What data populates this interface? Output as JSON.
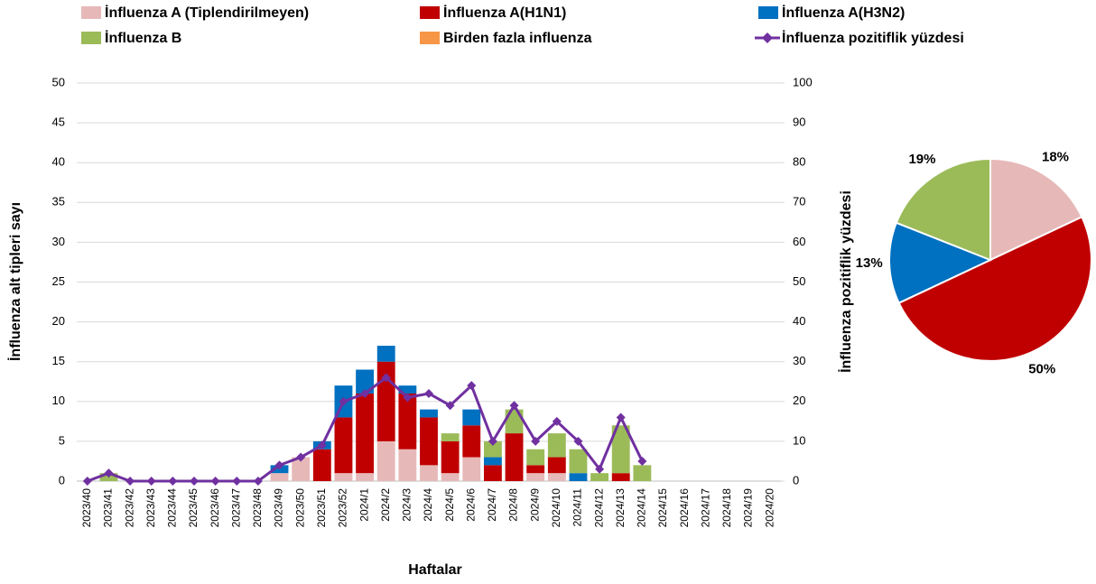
{
  "chart_data": [
    {
      "type": "bar",
      "categories": [
        "2023/40",
        "2023/41",
        "2023/42",
        "2023/43",
        "2023/44",
        "2023/45",
        "2023/46",
        "2023/47",
        "2023/48",
        "2023/49",
        "2023/50",
        "2023/51",
        "2023/52",
        "2024/1",
        "2024/2",
        "2024/3",
        "2024/4",
        "2024/5",
        "2024/6",
        "2024/7",
        "2024/8",
        "2024/9",
        "2024/10",
        "2024/11",
        "2024/12",
        "2024/13",
        "2024/14",
        "2024/15",
        "2024/16",
        "2024/17",
        "2024/18",
        "2024/19",
        "2024/20"
      ],
      "series": [
        {
          "name": "İnfluenza A (Tiplendirilmeyen)",
          "color": "#e6b9b8",
          "values": [
            0,
            0,
            0,
            0,
            0,
            0,
            0,
            0,
            0,
            1,
            3,
            0,
            1,
            1,
            5,
            4,
            2,
            1,
            3,
            0,
            0,
            1,
            1,
            0,
            0,
            0,
            0,
            0,
            0,
            0,
            0,
            0,
            0
          ]
        },
        {
          "name": "İnfluenza A(H1N1)",
          "color": "#c00000",
          "values": [
            0,
            0,
            0,
            0,
            0,
            0,
            0,
            0,
            0,
            0,
            0,
            4,
            7,
            10,
            10,
            7,
            6,
            4,
            4,
            2,
            6,
            1,
            2,
            0,
            0,
            1,
            0,
            0,
            0,
            0,
            0,
            0,
            0
          ]
        },
        {
          "name": "İnfluenza A(H3N2)",
          "color": "#0070c0",
          "values": [
            0,
            0,
            0,
            0,
            0,
            0,
            0,
            0,
            0,
            1,
            0,
            1,
            4,
            3,
            2,
            1,
            1,
            0,
            2,
            1,
            0,
            0,
            0,
            1,
            0,
            0,
            0,
            0,
            0,
            0,
            0,
            0,
            0
          ]
        },
        {
          "name": "İnfluenza B",
          "color": "#9bbb59",
          "values": [
            0,
            1,
            0,
            0,
            0,
            0,
            0,
            0,
            0,
            0,
            0,
            0,
            0,
            0,
            0,
            0,
            0,
            1,
            0,
            2,
            3,
            2,
            3,
            3,
            1,
            6,
            2,
            0,
            0,
            0,
            0,
            0,
            0
          ]
        },
        {
          "name": "Birden fazla influenza",
          "color": "#f79646",
          "values": [
            0,
            0,
            0,
            0,
            0,
            0,
            0,
            0,
            0,
            0,
            0,
            0,
            0,
            0,
            0,
            0,
            0,
            0,
            0,
            0,
            0,
            0,
            0,
            0,
            0,
            0,
            0,
            0,
            0,
            0,
            0,
            0,
            0
          ]
        },
        {
          "name": "İnfluenza pozitiflik yüzdesi",
          "color": "#7030a0",
          "type": "line",
          "axis": "y2",
          "values": [
            0,
            2,
            0,
            0,
            0,
            0,
            0,
            0,
            0,
            4,
            6,
            9,
            20,
            22,
            26,
            21,
            22,
            19,
            24,
            10,
            19,
            10,
            15,
            10,
            3,
            16,
            5,
            null,
            null,
            null,
            null,
            null,
            null
          ]
        }
      ],
      "ylabel": "İnfluenza alt tipleri sayı",
      "y2label": "İnfluenza pozitiflik yüzdesi",
      "xlabel": "Haftalar",
      "ylim": [
        0,
        50
      ],
      "yticks": [
        0,
        5,
        10,
        15,
        20,
        25,
        30,
        35,
        40,
        45,
        50
      ],
      "y2lim": [
        0,
        100
      ],
      "y2ticks": [
        0,
        10,
        20,
        30,
        40,
        50,
        60,
        70,
        80,
        90,
        100
      ],
      "grid": true,
      "stacked": true,
      "legend": "top"
    },
    {
      "type": "pie",
      "values": [
        18,
        50,
        13,
        19
      ],
      "value_labels": [
        "18%",
        "50%",
        "13%",
        "19%"
      ],
      "colors": [
        "#e6b9b8",
        "#c00000",
        "#0070c0",
        "#9bbb59"
      ]
    }
  ]
}
